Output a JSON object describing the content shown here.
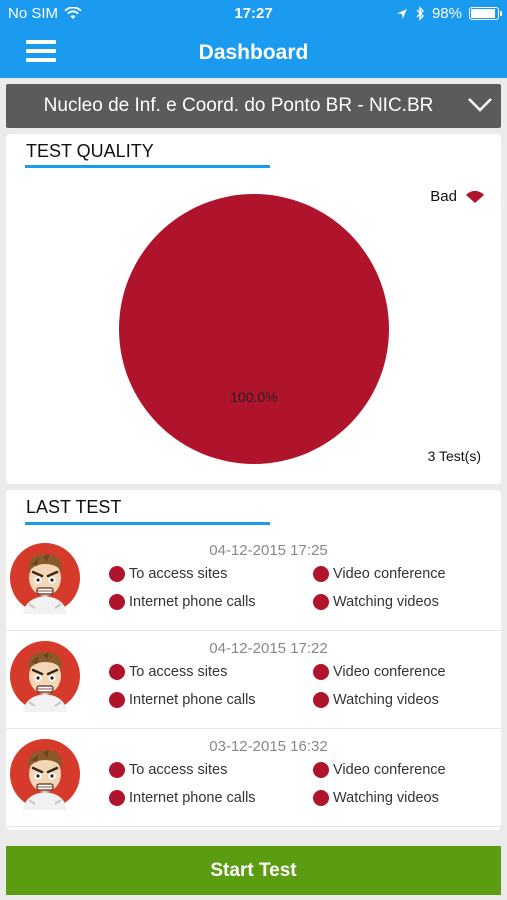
{
  "status_bar": {
    "carrier": "No SIM",
    "time": "17:27",
    "battery": "98%"
  },
  "nav": {
    "title": "Dashboard"
  },
  "provider": {
    "selected": "Nucleo de Inf. e Coord. do Ponto BR - NIC.BR"
  },
  "test_quality": {
    "title": "TEST QUALITY",
    "legend_label": "Bad",
    "tests_count": "3 Test(s)",
    "colors": {
      "bad": "#b0142d",
      "accent": "#1a9bef"
    },
    "chart_data": {
      "type": "pie",
      "categories": [
        "Bad"
      ],
      "values": [
        100.0
      ],
      "slice_labels": [
        "100.0%"
      ]
    }
  },
  "last_test": {
    "title": "LAST TEST",
    "tests": [
      {
        "date": "04-12-2015 17:25",
        "services": [
          "To access sites",
          "Video conference",
          "Internet phone calls",
          "Watching videos"
        ]
      },
      {
        "date": "04-12-2015 17:22",
        "services": [
          "To access sites",
          "Video conference",
          "Internet phone calls",
          "Watching videos"
        ]
      },
      {
        "date": "03-12-2015 16:32",
        "services": [
          "To access sites",
          "Video conference",
          "Internet phone calls",
          "Watching videos"
        ]
      }
    ]
  },
  "start_button": {
    "label": "Start Test"
  },
  "icons": {
    "menu": "hamburger-icon",
    "wifi": "wifi-icon",
    "location": "location-arrow-icon",
    "bluetooth": "bluetooth-icon",
    "battery": "battery-icon",
    "dropdown": "chevron-down-icon",
    "avatar": "angry-user-icon",
    "status": "red-dot-icon"
  }
}
